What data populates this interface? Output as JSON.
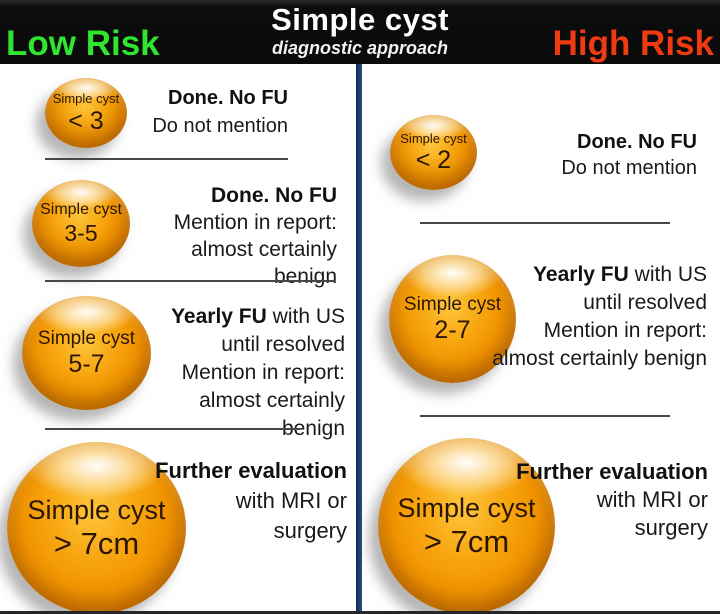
{
  "header": {
    "title": "Simple cyst",
    "subtitle": "diagnostic approach",
    "low_risk": "Low Risk",
    "high_risk": "High Risk"
  },
  "colors": {
    "low_risk_green": "#2FE52F",
    "high_risk_red": "#F03A12",
    "divider_navy": "#1E3A6E",
    "sphere_orange": "#F29500",
    "header_black": "#0C0C0C"
  },
  "columns": {
    "low": {
      "rows": [
        {
          "sphere": {
            "label": "Simple cyst",
            "size": "< 3"
          },
          "lines": [
            {
              "b": "Done. No FU",
              "r": ""
            },
            {
              "b": "",
              "r": "Do not mention"
            }
          ]
        },
        {
          "sphere": {
            "label": "Simple cyst",
            "size": "3-5"
          },
          "lines": [
            {
              "b": "Done. No FU",
              "r": ""
            },
            {
              "b": "",
              "r": "Mention in report:"
            },
            {
              "b": "",
              "r": "almost certainly benign"
            }
          ]
        },
        {
          "sphere": {
            "label": "Simple cyst",
            "size": "5-7"
          },
          "lines": [
            {
              "b": "Yearly FU",
              "r": " with US"
            },
            {
              "b": "",
              "r": "until resolved"
            },
            {
              "b": "",
              "r": "Mention in report:"
            },
            {
              "b": "",
              "r": "almost certainly benign"
            }
          ]
        },
        {
          "sphere": {
            "label": "Simple cyst",
            "size": "> 7cm"
          },
          "lines": [
            {
              "b": "Further evaluation",
              "r": ""
            },
            {
              "b": "",
              "r": "with MRI or"
            },
            {
              "b": "",
              "r": "surgery"
            }
          ]
        }
      ]
    },
    "high": {
      "rows": [
        {
          "sphere": {
            "label": "Simple cyst",
            "size": "< 2"
          },
          "lines": [
            {
              "b": "Done. No FU",
              "r": ""
            },
            {
              "b": "",
              "r": "Do not mention"
            }
          ]
        },
        {
          "sphere": {
            "label": "Simple cyst",
            "size": "2-7"
          },
          "lines": [
            {
              "b": "Yearly FU",
              "r": " with US"
            },
            {
              "b": "",
              "r": "until resolved"
            },
            {
              "b": "",
              "r": "Mention in report:"
            },
            {
              "b": "",
              "r": "almost certainly benign"
            }
          ]
        },
        {
          "sphere": {
            "label": "Simple cyst",
            "size": "> 7cm"
          },
          "lines": [
            {
              "b": "Further evaluation",
              "r": ""
            },
            {
              "b": "",
              "r": "with MRI or"
            },
            {
              "b": "",
              "r": "surgery"
            }
          ]
        }
      ]
    }
  }
}
